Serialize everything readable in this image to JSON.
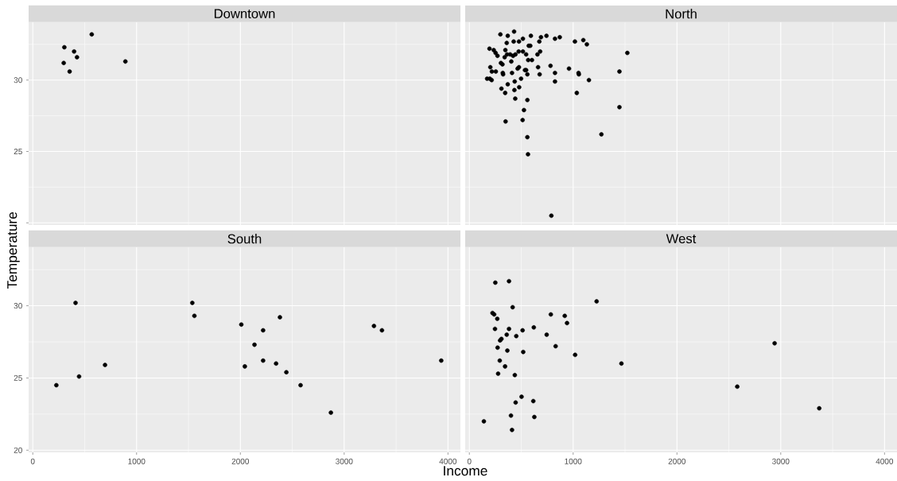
{
  "chart_data": [
    {
      "type": "scatter",
      "title": "Downtown",
      "color": "#000000",
      "grid": true,
      "tick_labels": "y",
      "xlim": [
        -40,
        4120
      ],
      "ylim": [
        19.85,
        34.05
      ],
      "xticks": [
        0,
        1000,
        2000,
        3000,
        4000
      ],
      "yticks": [
        {
          "value": 20,
          "label": null
        },
        25,
        30
      ],
      "x": [
        304,
        398,
        426,
        298,
        355,
        568,
        892
      ],
      "values": [
        32.3,
        32.0,
        31.6,
        31.2,
        30.6,
        33.2,
        31.3
      ]
    },
    {
      "type": "scatter",
      "title": "North",
      "color": "#000000",
      "grid": true,
      "tick_labels": false,
      "xlim": [
        -40,
        4120
      ],
      "ylim": [
        19.85,
        34.05
      ],
      "xticks": [
        0,
        1000,
        2000,
        3000,
        4000
      ],
      "yticks": [
        20,
        25,
        30
      ],
      "x": [
        299,
        370,
        431,
        360,
        427,
        478,
        516,
        593,
        690,
        674,
        743,
        825,
        871,
        1017,
        1098,
        1132,
        1522,
        194,
        235,
        253,
        271,
        347,
        340,
        363,
        393,
        421,
        444,
        475,
        516,
        547,
        572,
        587,
        404,
        567,
        603,
        656,
        682,
        304,
        319,
        202,
        217,
        255,
        322,
        325,
        411,
        465,
        478,
        536,
        547,
        559,
        662,
        677,
        782,
        825,
        960,
        1052,
        1055,
        1446,
        171,
        197,
        215,
        498,
        825,
        1152,
        370,
        437,
        480,
        309,
        345,
        434,
        1035,
        442,
        559,
        526,
        1446,
        349,
        513,
        559,
        565,
        1272,
        790
      ],
      "values": [
        33.2,
        33.1,
        33.4,
        32.6,
        32.7,
        32.7,
        32.9,
        33.1,
        33.0,
        32.7,
        33.1,
        32.9,
        33.0,
        32.7,
        32.8,
        32.5,
        31.9,
        32.2,
        32.1,
        31.9,
        31.7,
        32.1,
        31.6,
        31.8,
        31.8,
        31.7,
        31.8,
        32.0,
        32.0,
        31.8,
        32.4,
        32.4,
        31.3,
        31.4,
        31.4,
        31.8,
        32.0,
        31.2,
        31.1,
        30.9,
        30.6,
        30.6,
        30.5,
        30.4,
        30.5,
        30.8,
        30.9,
        30.7,
        30.7,
        30.4,
        30.9,
        30.4,
        31.0,
        30.5,
        30.8,
        30.5,
        30.4,
        30.6,
        30.1,
        30.1,
        30.0,
        30.1,
        29.9,
        30.0,
        29.7,
        29.9,
        29.5,
        29.4,
        29.1,
        29.3,
        29.1,
        28.7,
        28.6,
        27.9,
        28.1,
        27.1,
        27.2,
        26.0,
        24.8,
        26.2,
        20.5
      ]
    },
    {
      "type": "scatter",
      "title": "South",
      "xlabel": "Income",
      "ylabel": "Temperature",
      "color": "#000000",
      "grid": true,
      "xlim": [
        -40,
        4120
      ],
      "ylim": [
        19.85,
        34.05
      ],
      "xticks": [
        0,
        1000,
        2000,
        3000,
        4000
      ],
      "yticks": [
        20,
        25,
        30
      ],
      "x": [
        227,
        412,
        446,
        696,
        1537,
        1557,
        2009,
        2043,
        2136,
        2219,
        2219,
        2381,
        2344,
        2443,
        2580,
        2872,
        3287,
        3364,
        3935
      ],
      "values": [
        24.5,
        30.2,
        25.1,
        25.9,
        30.2,
        29.3,
        28.7,
        25.8,
        27.3,
        28.3,
        26.2,
        29.2,
        26.0,
        25.4,
        24.5,
        22.6,
        28.6,
        28.3,
        26.2
      ]
    },
    {
      "type": "scatter",
      "title": "West",
      "color": "#000000",
      "grid": true,
      "tick_labels": "x",
      "xlim": [
        -40,
        4120
      ],
      "ylim": [
        19.85,
        34.05
      ],
      "xticks": [
        0,
        1000,
        2000,
        3000,
        4000
      ],
      "yticks": [
        20,
        25,
        30
      ],
      "x": [
        250,
        382,
        417,
        1226,
        223,
        239,
        269,
        785,
        919,
        941,
        247,
        382,
        513,
        621,
        360,
        452,
        745,
        296,
        309,
        272,
        366,
        519,
        831,
        1019,
        1465,
        2941,
        293,
        344,
        277,
        438,
        2581,
        503,
        446,
        616,
        3371,
        401,
        626,
        140,
        411
      ],
      "values": [
        31.6,
        31.7,
        29.9,
        30.3,
        29.5,
        29.4,
        29.1,
        29.4,
        29.3,
        28.8,
        28.4,
        28.4,
        28.3,
        28.5,
        28.0,
        27.9,
        28.0,
        27.6,
        27.7,
        27.1,
        26.9,
        26.8,
        27.2,
        26.6,
        26.0,
        27.4,
        26.2,
        25.8,
        25.3,
        25.2,
        24.4,
        23.7,
        23.3,
        23.4,
        22.9,
        22.4,
        22.3,
        22.0,
        21.4
      ]
    }
  ]
}
